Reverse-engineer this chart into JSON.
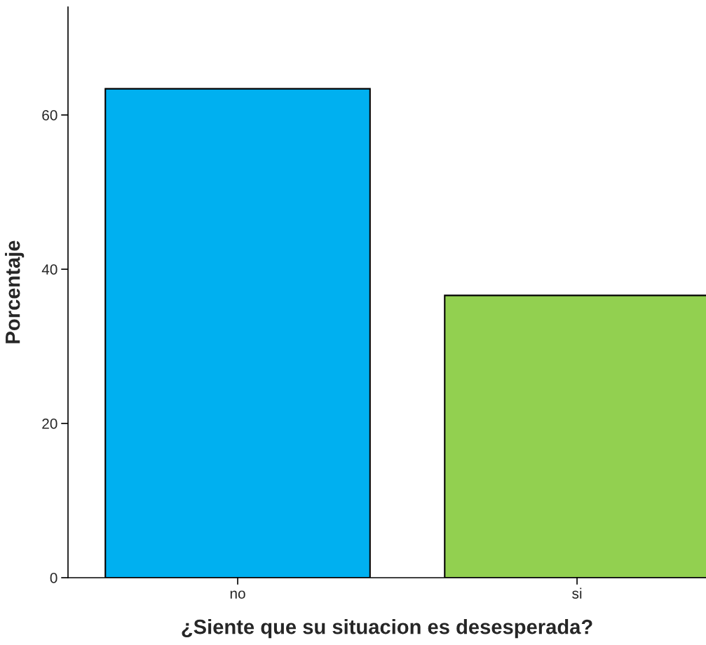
{
  "chart_data": {
    "type": "bar",
    "xlabel": "¿Siente que su situacion es desesperada?",
    "ylabel": "Porcentaje",
    "categories": [
      "no",
      "si"
    ],
    "values": [
      63.4,
      36.6
    ],
    "colors": [
      "#00b0f0",
      "#92d050"
    ],
    "ylim": [
      0,
      74
    ],
    "yticks": [
      0,
      20,
      40,
      60
    ],
    "grid": false
  }
}
